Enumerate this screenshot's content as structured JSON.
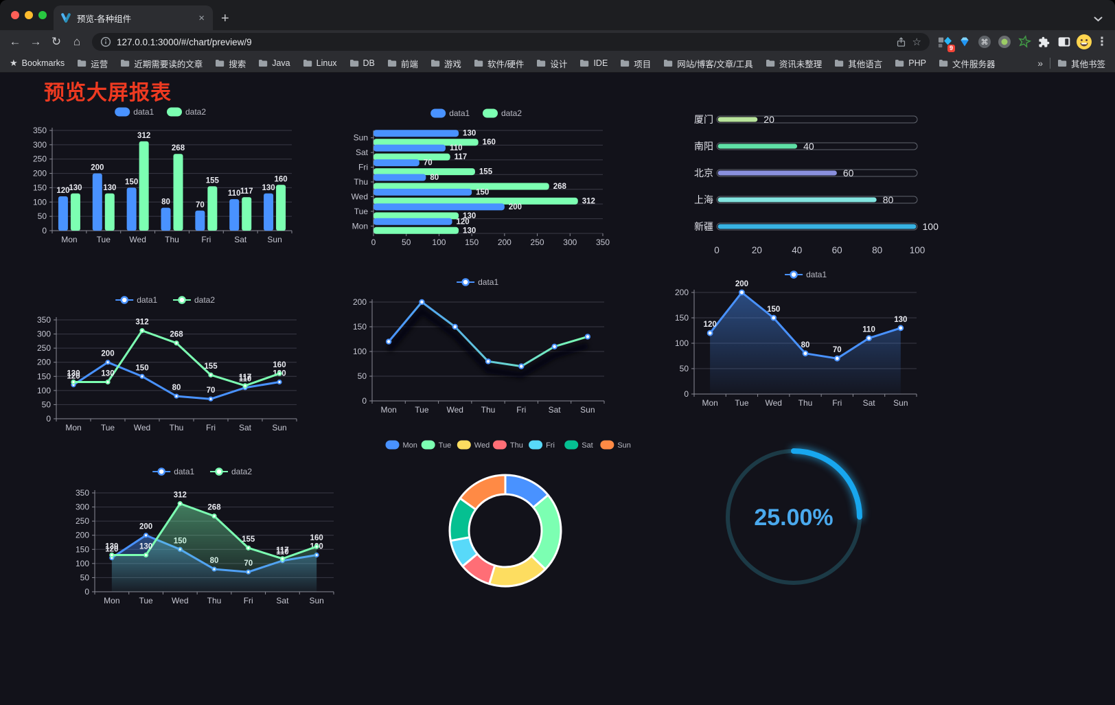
{
  "browser": {
    "tab": {
      "title": "预览-各种组件"
    },
    "toolbar": {
      "url": "127.0.0.1:3000/#/chart/preview/9",
      "extension_badge": "9"
    },
    "icons": {
      "close": "×",
      "new_tab": "+",
      "back": "←",
      "forward": "→",
      "reload": "↻",
      "home": "⌂",
      "bookmark_star": "★",
      "url_star": "☆",
      "menu": "⋮",
      "overflow": "»"
    },
    "bookmarks": {
      "label": "Bookmarks",
      "items": [
        "运营",
        "近期需要读的文章",
        "搜索",
        "Java",
        "Linux",
        "DB",
        "前端",
        "游戏",
        "软件/硬件",
        "设计",
        "IDE",
        "项目",
        "网站/博客/文章/工具",
        "资讯未整理",
        "其他语言",
        "PHP",
        "文件服务器"
      ],
      "other": "其他书签"
    }
  },
  "page": {
    "title": "预览大屏报表",
    "title_color": "#ee3a21",
    "background": "#12121a"
  },
  "chart_data": [
    {
      "id": "c1",
      "type": "bar",
      "title": "grouped vertical bar",
      "categories": [
        "Mon",
        "Tue",
        "Wed",
        "Thu",
        "Fri",
        "Sat",
        "Sun"
      ],
      "series": [
        {
          "name": "data1",
          "color": "#4992ff",
          "values": [
            120,
            200,
            150,
            80,
            70,
            110,
            130
          ]
        },
        {
          "name": "data2",
          "color": "#7cffb2",
          "values": [
            130,
            130,
            312,
            268,
            155,
            117,
            160
          ]
        }
      ],
      "ylim": [
        0,
        350
      ],
      "ystep": 50,
      "labels": true,
      "legend_position": "top",
      "grid": true
    },
    {
      "id": "c2",
      "type": "hbar",
      "title": "grouped horizontal bar",
      "categories": [
        "Mon",
        "Tue",
        "Wed",
        "Thu",
        "Fri",
        "Sat",
        "Sun"
      ],
      "display_order_top_to_bottom": [
        "Sun",
        "Sat",
        "Fri",
        "Thu",
        "Wed",
        "Tue",
        "Mon"
      ],
      "series": [
        {
          "name": "data1",
          "color": "#4992ff",
          "values": [
            120,
            200,
            150,
            80,
            70,
            110,
            130
          ]
        },
        {
          "name": "data2",
          "color": "#7cffb2",
          "values": [
            130,
            130,
            312,
            268,
            155,
            117,
            160
          ]
        }
      ],
      "xlim": [
        0,
        350
      ],
      "xstep": 50,
      "labels": true,
      "legend_position": "top"
    },
    {
      "id": "c3",
      "type": "progress",
      "title": "capsule progress bars",
      "items": [
        {
          "label": "厦门",
          "value": 20,
          "color": "#b8e39b"
        },
        {
          "label": "南阳",
          "value": 40,
          "color": "#5fe0a6"
        },
        {
          "label": "北京",
          "value": 60,
          "color": "#8a90de"
        },
        {
          "label": "上海",
          "value": 80,
          "color": "#82e4df"
        },
        {
          "label": "新疆",
          "value": 100,
          "color": "#38b2e2"
        }
      ],
      "xlim": [
        0,
        100
      ],
      "xticks": [
        0,
        20,
        40,
        60,
        80,
        100
      ]
    },
    {
      "id": "c4",
      "type": "line",
      "title": "double line",
      "categories": [
        "Mon",
        "Tue",
        "Wed",
        "Thu",
        "Fri",
        "Sat",
        "Sun"
      ],
      "series": [
        {
          "name": "data1",
          "color": "#4992ff",
          "values": [
            120,
            200,
            150,
            80,
            70,
            110,
            130
          ]
        },
        {
          "name": "data2",
          "color": "#7cffb2",
          "values": [
            130,
            130,
            312,
            268,
            155,
            117,
            160
          ]
        }
      ],
      "ylim": [
        0,
        350
      ],
      "ystep": 50,
      "labels": true,
      "legend_position": "top"
    },
    {
      "id": "c5",
      "type": "line",
      "title": "gradient line with shadow",
      "categories": [
        "Mon",
        "Tue",
        "Wed",
        "Thu",
        "Fri",
        "Sat",
        "Sun"
      ],
      "series": [
        {
          "name": "data1",
          "gradient": [
            "#4992ff",
            "#7cffb2"
          ],
          "values": [
            120,
            200,
            150,
            80,
            70,
            110,
            130
          ]
        }
      ],
      "ylim": [
        0,
        200
      ],
      "ystep": 50,
      "labels": false,
      "shadow": true,
      "legend_position": "top"
    },
    {
      "id": "c6",
      "type": "line",
      "title": "area line",
      "categories": [
        "Mon",
        "Tue",
        "Wed",
        "Thu",
        "Fri",
        "Sat",
        "Sun"
      ],
      "series": [
        {
          "name": "data1",
          "color": "#4992ff",
          "area": true,
          "values": [
            120,
            200,
            150,
            80,
            70,
            110,
            130
          ]
        }
      ],
      "ylim": [
        0,
        200
      ],
      "ystep": 50,
      "labels": true,
      "legend_position": "top"
    },
    {
      "id": "c7",
      "type": "line",
      "title": "double area line",
      "categories": [
        "Mon",
        "Tue",
        "Wed",
        "Thu",
        "Fri",
        "Sat",
        "Sun"
      ],
      "series": [
        {
          "name": "data1",
          "color": "#4992ff",
          "area": true,
          "values": [
            120,
            200,
            150,
            80,
            70,
            110,
            130
          ]
        },
        {
          "name": "data2",
          "color": "#7cffb2",
          "area": true,
          "values": [
            130,
            130,
            312,
            268,
            155,
            117,
            160
          ]
        }
      ],
      "ylim": [
        0,
        350
      ],
      "ystep": 50,
      "labels": true,
      "legend_position": "top"
    },
    {
      "id": "c8",
      "type": "pie",
      "title": "donut",
      "style": "donut with white borders",
      "labels": [
        "Mon",
        "Tue",
        "Wed",
        "Thu",
        "Fri",
        "Sat",
        "Sun"
      ],
      "values": [
        120,
        200,
        150,
        80,
        70,
        110,
        130
      ],
      "colors": [
        "#4992ff",
        "#7cffb2",
        "#fddd60",
        "#ff6e76",
        "#58d9f9",
        "#05c091",
        "#ff8a45"
      ],
      "legend_position": "top"
    },
    {
      "id": "c9",
      "type": "gauge",
      "title": "circular progress",
      "value_percent": 25,
      "display": "25.00%",
      "arc_color": "#18a7ef",
      "track_color": "#1c3a46",
      "text_color": "#4aa9ed"
    }
  ]
}
